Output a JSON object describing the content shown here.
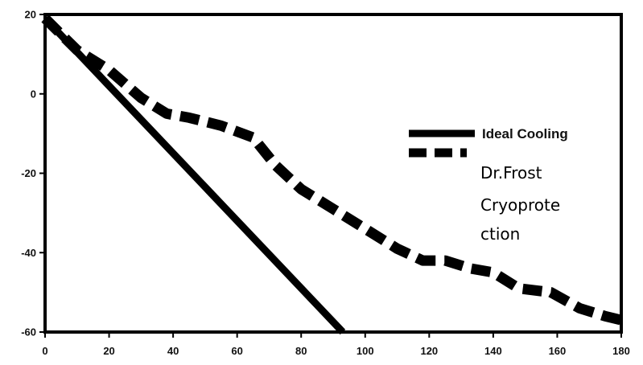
{
  "chart_data": {
    "type": "line",
    "title": "",
    "xlabel": "",
    "ylabel": "",
    "xlim": [
      0,
      180
    ],
    "ylim": [
      -60,
      20
    ],
    "xticks": [
      0,
      20,
      40,
      60,
      80,
      100,
      120,
      140,
      160,
      180
    ],
    "yticks": [
      20,
      0,
      -20,
      -40,
      -60
    ],
    "grid": false,
    "legend_position": "right",
    "series": [
      {
        "name": "Ideal Cooling",
        "style": "solid",
        "color": "#000000",
        "x": [
          0,
          93
        ],
        "y": [
          19,
          -60
        ]
      },
      {
        "name_lines": [
          "Dr.Frost",
          "Cryoprote",
          "ction"
        ],
        "style": "dashed",
        "color": "#000000",
        "x": [
          0,
          10,
          20,
          30,
          38,
          45,
          55,
          65,
          72,
          80,
          90,
          100,
          110,
          118,
          125,
          133,
          140,
          148,
          158,
          167,
          175,
          180
        ],
        "y": [
          19,
          11,
          6,
          -1,
          -5,
          -6,
          -8,
          -11,
          -18,
          -24,
          -29,
          -34,
          -39,
          -42,
          -42,
          -44,
          -45,
          -49,
          -50,
          -54,
          -56,
          -57
        ]
      }
    ]
  }
}
